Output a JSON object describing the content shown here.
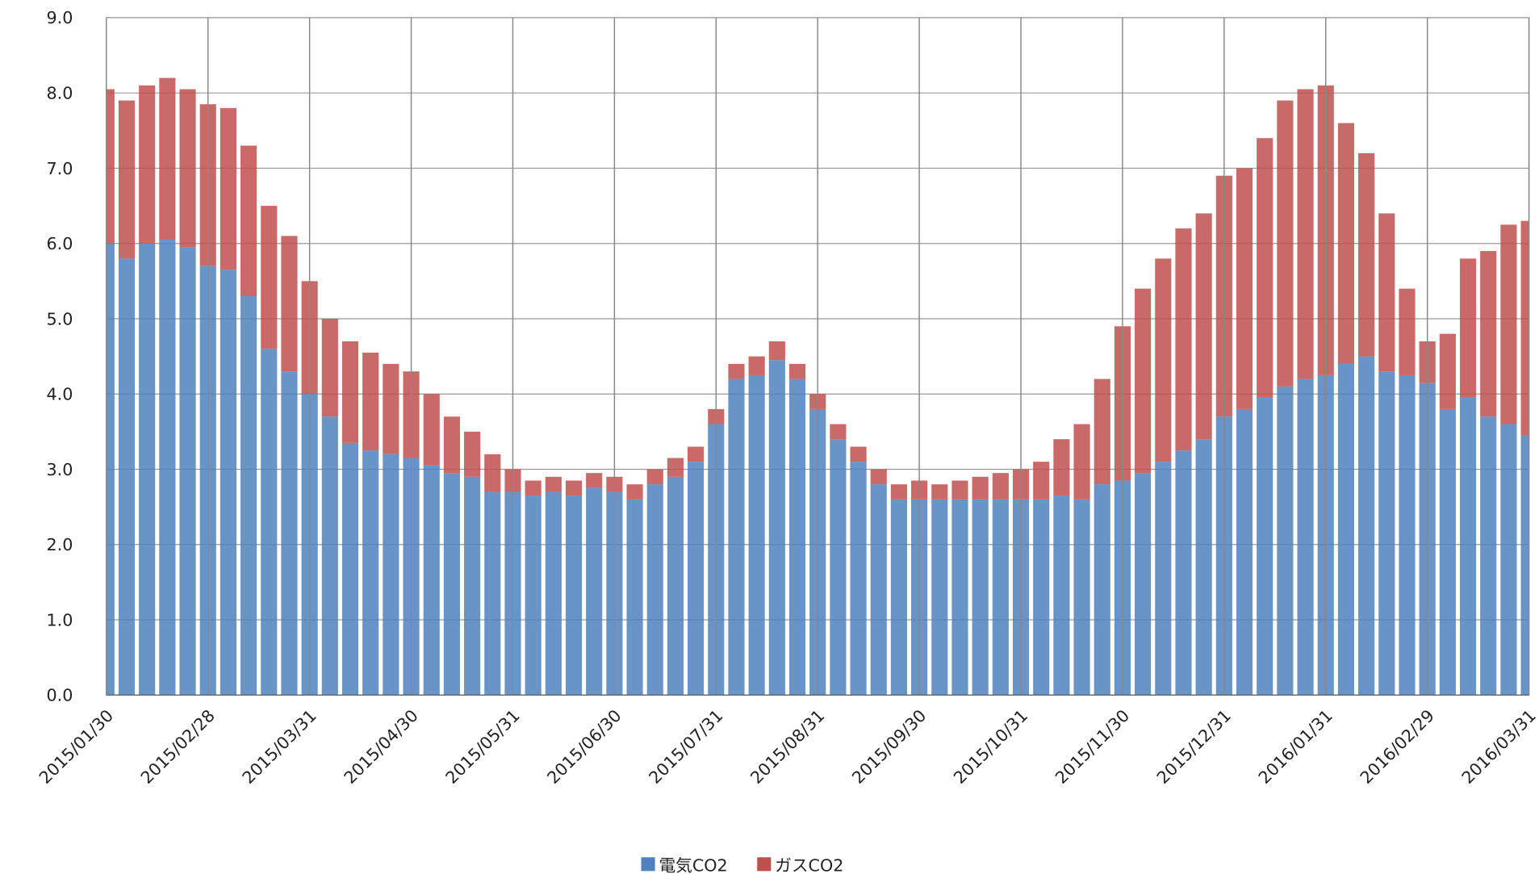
{
  "chart_data": {
    "type": "stacked_bar",
    "categories": [
      "2015/01/30",
      null,
      null,
      null,
      null,
      "2015/02/28",
      null,
      null,
      null,
      null,
      "2015/03/31",
      null,
      null,
      null,
      null,
      "2015/04/30",
      null,
      null,
      null,
      null,
      "2015/05/31",
      null,
      null,
      null,
      null,
      "2015/06/30",
      null,
      null,
      null,
      null,
      "2015/07/31",
      null,
      null,
      null,
      null,
      "2015/08/31",
      null,
      null,
      null,
      null,
      "2015/09/30",
      null,
      null,
      null,
      null,
      "2015/10/31",
      null,
      null,
      null,
      null,
      "2015/11/30",
      null,
      null,
      null,
      null,
      "2015/12/31",
      null,
      null,
      null,
      null,
      "2016/01/31",
      null,
      null,
      null,
      null,
      "2016/02/29",
      null,
      null,
      null,
      null,
      "2016/03/31"
    ],
    "series": [
      {
        "name": "電気CO2",
        "color": "#4f81bd",
        "values": [
          6.0,
          5.8,
          6.0,
          6.05,
          5.95,
          5.7,
          5.65,
          5.3,
          4.6,
          4.3,
          4.0,
          3.7,
          3.35,
          3.25,
          3.2,
          3.15,
          3.05,
          2.95,
          2.9,
          2.7,
          2.7,
          2.65,
          2.7,
          2.65,
          2.75,
          2.7,
          2.6,
          2.8,
          2.9,
          3.1,
          3.6,
          4.2,
          4.25,
          4.45,
          4.2,
          3.8,
          3.4,
          3.1,
          2.8,
          2.6,
          2.6,
          2.6,
          2.6,
          2.6,
          2.6,
          2.6,
          2.6,
          2.65,
          2.6,
          2.8,
          2.85,
          2.95,
          3.1,
          3.25,
          3.4,
          3.7,
          3.8,
          3.95,
          4.1,
          4.2,
          4.25,
          4.4,
          4.5,
          4.3,
          4.25,
          4.15,
          3.8,
          3.95,
          3.7,
          3.6,
          3.45
        ]
      },
      {
        "name": "ガスCO2",
        "color": "#c0504d",
        "values": [
          2.05,
          2.1,
          2.1,
          2.15,
          2.1,
          2.15,
          2.15,
          2.0,
          1.9,
          1.8,
          1.5,
          1.3,
          1.35,
          1.3,
          1.2,
          1.15,
          0.95,
          0.75,
          0.6,
          0.5,
          0.3,
          0.2,
          0.2,
          0.2,
          0.2,
          0.2,
          0.2,
          0.2,
          0.25,
          0.2,
          0.2,
          0.2,
          0.25,
          0.25,
          0.2,
          0.2,
          0.2,
          0.2,
          0.2,
          0.2,
          0.25,
          0.2,
          0.25,
          0.3,
          0.35,
          0.4,
          0.5,
          0.75,
          1.0,
          1.4,
          2.05,
          2.45,
          2.7,
          2.95,
          3.0,
          3.2,
          3.2,
          3.45,
          3.8,
          3.85,
          3.85,
          3.2,
          2.7,
          2.1,
          1.15,
          0.55,
          1.0,
          1.85,
          2.2,
          2.65,
          2.85
        ]
      }
    ],
    "ylim": [
      0,
      9
    ],
    "yticks": [
      {
        "value": 0,
        "label": "0.0"
      },
      {
        "value": 1,
        "label": "1.0"
      },
      {
        "value": 2,
        "label": "2.0"
      },
      {
        "value": 3,
        "label": "3.0"
      },
      {
        "value": 4,
        "label": "4.0"
      },
      {
        "value": 5,
        "label": "5.0"
      },
      {
        "value": 6,
        "label": "6.0"
      },
      {
        "value": 7,
        "label": "7.0"
      },
      {
        "value": 8,
        "label": "8.0"
      },
      {
        "value": 9,
        "label": "9.0"
      }
    ],
    "grid": true,
    "legend": "bottom"
  }
}
